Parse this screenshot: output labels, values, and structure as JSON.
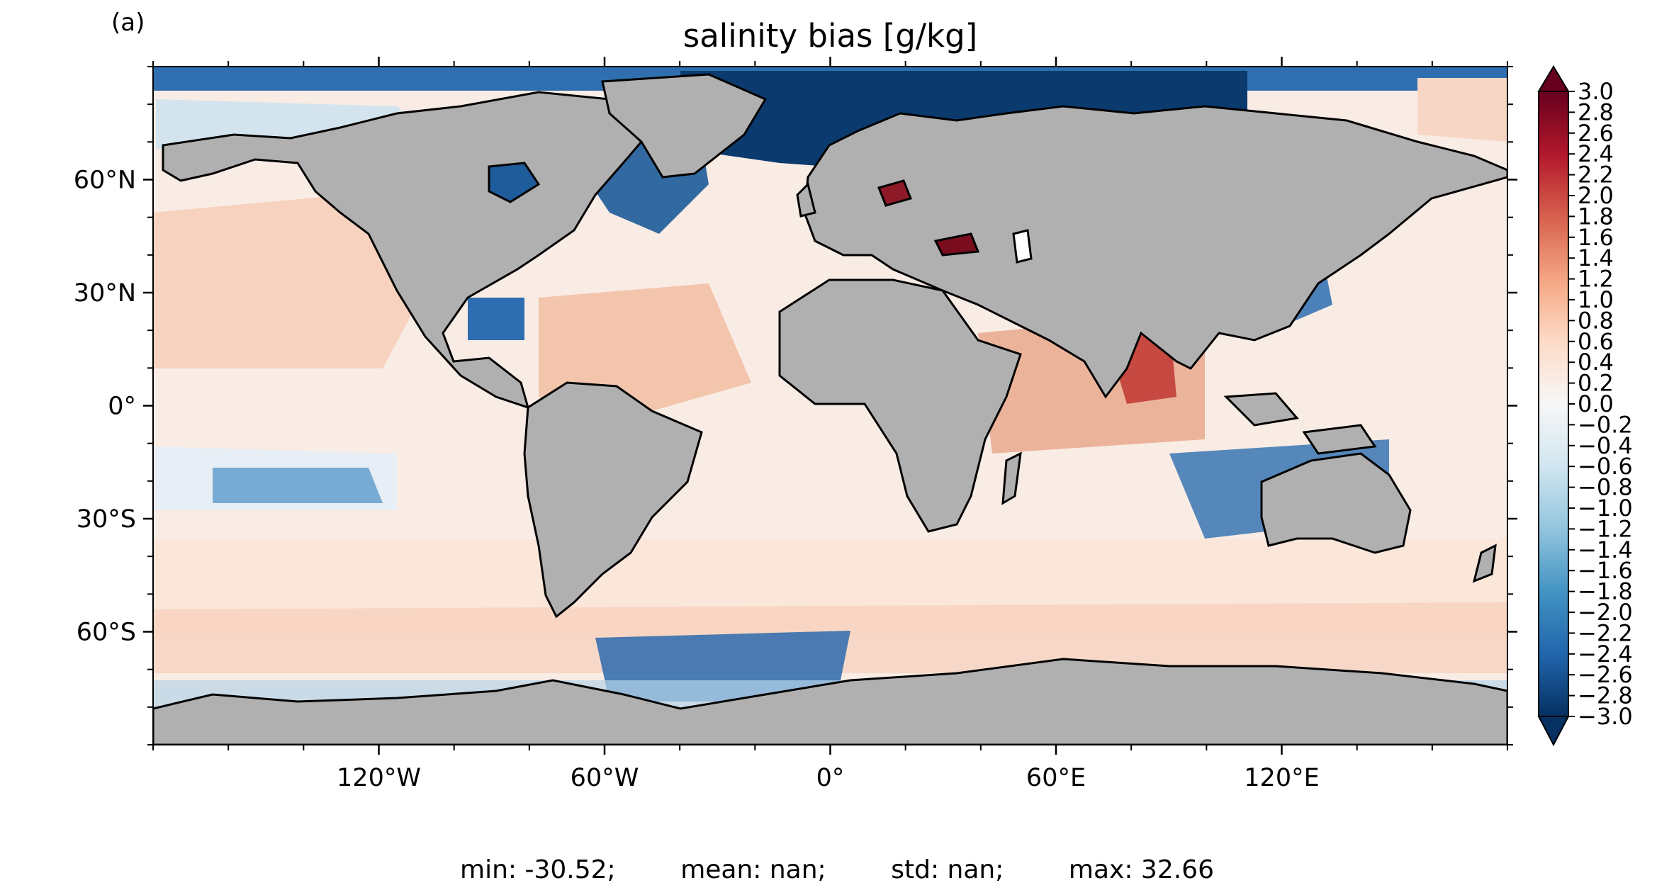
{
  "figure": {
    "panel_label": "(a)",
    "title": "salinity bias [g/kg]",
    "stats": {
      "min_label": "min: -30.52;",
      "mean_label": "mean: nan;",
      "std_label": "std: nan;",
      "max_label": "max: 32.66"
    }
  },
  "map": {
    "projection": "PlateCarree",
    "lon_range": [
      -180,
      180
    ],
    "lat_range": [
      -90,
      90
    ],
    "land_color": "#b0b0b0",
    "coastline_color": "#000000",
    "x_ticks": [
      {
        "lon": -120,
        "label": "120°W"
      },
      {
        "lon": -60,
        "label": "60°W"
      },
      {
        "lon": 0,
        "label": "0°"
      },
      {
        "lon": 60,
        "label": "60°E"
      },
      {
        "lon": 120,
        "label": "120°E"
      }
    ],
    "y_ticks": [
      {
        "lat": 60,
        "label": "60°N"
      },
      {
        "lat": 30,
        "label": "30°N"
      },
      {
        "lat": 0,
        "label": "0°"
      },
      {
        "lat": -30,
        "label": "30°S"
      },
      {
        "lat": -60,
        "label": "60°S"
      }
    ]
  },
  "colorbar": {
    "colormap": "RdBu_r",
    "min": -3.0,
    "max": 3.0,
    "extend": "both",
    "colors": [
      "#053061",
      "#2166ac",
      "#4393c3",
      "#92c5de",
      "#d1e5f0",
      "#f7f7f7",
      "#fddbc7",
      "#f4a582",
      "#d6604d",
      "#b2182b",
      "#67001f"
    ],
    "tick_labels": [
      "3.0",
      "2.8",
      "2.6",
      "2.4",
      "2.2",
      "2.0",
      "1.8",
      "1.6",
      "1.4",
      "1.2",
      "1.0",
      "0.8",
      "0.6",
      "0.4",
      "0.2",
      "0.0",
      "−0.2",
      "−0.4",
      "−0.6",
      "−0.8",
      "−1.0",
      "−1.2",
      "−1.4",
      "−1.6",
      "−1.8",
      "−2.0",
      "−2.2",
      "−2.4",
      "−2.6",
      "−2.8",
      "−3.0"
    ]
  }
}
